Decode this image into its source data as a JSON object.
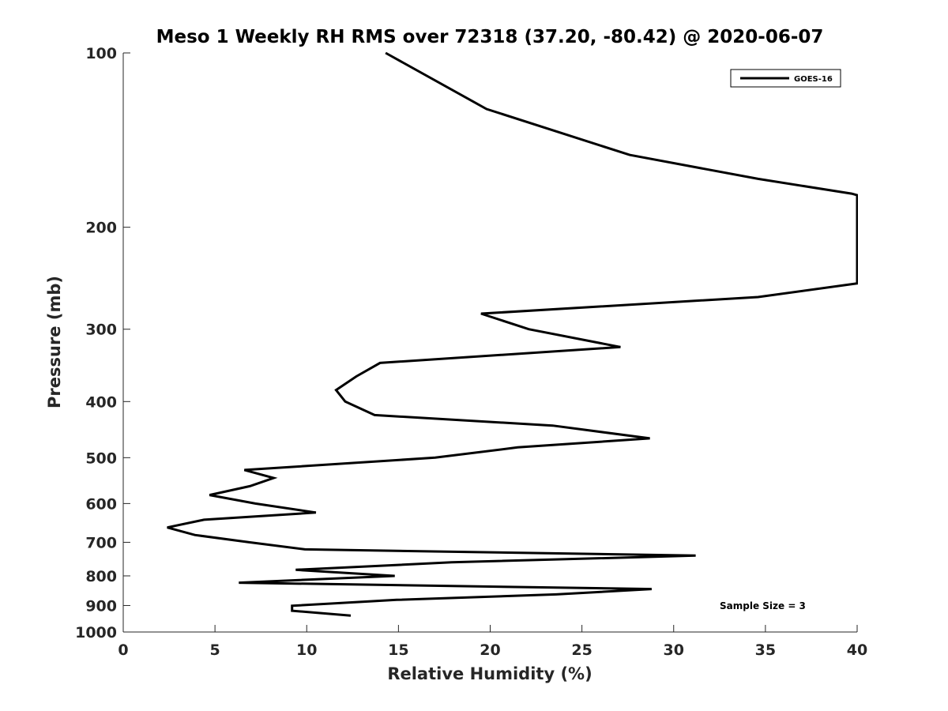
{
  "chart_data": {
    "type": "line",
    "title": "Meso 1 Weekly RH RMS over 72318 (37.20, -80.42) @ 2020-06-07",
    "xlabel": "Relative Humidity (%)",
    "ylabel": "Pressure (mb)",
    "xlim": [
      0,
      40
    ],
    "ylim": [
      100,
      1000
    ],
    "y_scale": "log",
    "y_reversed": true,
    "x_ticks": [
      "0",
      "5",
      "10",
      "15",
      "20",
      "25",
      "30",
      "35",
      "40"
    ],
    "y_ticks": [
      "100",
      "200",
      "300",
      "400",
      "500",
      "600",
      "700",
      "800",
      "900",
      "1000"
    ],
    "grid": false,
    "legend": {
      "position": "top-right",
      "entries": [
        "GOES-16"
      ]
    },
    "annotation": "Sample Size = 3",
    "series": [
      {
        "name": "GOES-16",
        "color": "#000000",
        "points": [
          [
            14.3,
            100
          ],
          [
            19.8,
            125
          ],
          [
            27.6,
            150
          ],
          [
            34.6,
            165
          ],
          [
            39.7,
            175
          ],
          [
            40.0,
            176
          ],
          [
            40.0,
            250
          ],
          [
            34.6,
            264
          ],
          [
            19.5,
            282
          ],
          [
            22.1,
            300
          ],
          [
            27.1,
            322
          ],
          [
            14.0,
            343
          ],
          [
            12.7,
            362
          ],
          [
            11.6,
            382
          ],
          [
            12.1,
            400
          ],
          [
            13.7,
            422
          ],
          [
            23.4,
            440
          ],
          [
            28.7,
            463
          ],
          [
            21.5,
            480
          ],
          [
            17.0,
            500
          ],
          [
            6.6,
            525
          ],
          [
            8.2,
            542
          ],
          [
            6.9,
            560
          ],
          [
            4.7,
            580
          ],
          [
            7.2,
            600
          ],
          [
            10.5,
            622
          ],
          [
            4.4,
            640
          ],
          [
            2.4,
            660
          ],
          [
            3.9,
            680
          ],
          [
            6.9,
            700
          ],
          [
            9.9,
            720
          ],
          [
            31.2,
            738
          ],
          [
            17.9,
            758
          ],
          [
            9.4,
            781
          ],
          [
            14.8,
            800
          ],
          [
            6.3,
            822
          ],
          [
            28.8,
            843
          ],
          [
            23.6,
            861
          ],
          [
            14.9,
            880
          ],
          [
            9.2,
            901
          ],
          [
            9.2,
            919
          ],
          [
            12.4,
            937
          ]
        ]
      }
    ]
  }
}
